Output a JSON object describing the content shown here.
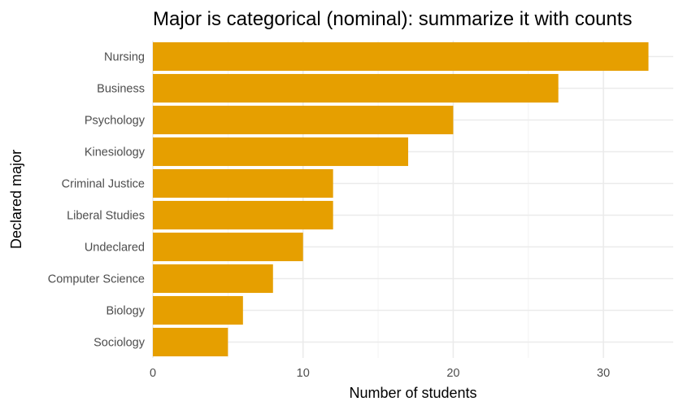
{
  "chart_data": {
    "type": "bar",
    "orientation": "horizontal",
    "title": "Major is categorical (nominal): summarize it with counts",
    "xlabel": "Number of students",
    "ylabel": "Declared major",
    "categories": [
      "Nursing",
      "Business",
      "Psychology",
      "Kinesiology",
      "Criminal Justice",
      "Liberal Studies",
      "Undeclared",
      "Computer Science",
      "Biology",
      "Sociology"
    ],
    "values": [
      33,
      27,
      20,
      17,
      12,
      12,
      10,
      8,
      6,
      5
    ],
    "xlim": [
      0,
      33
    ],
    "xticks": [
      0,
      10,
      20,
      30
    ],
    "grid": true,
    "colors": {
      "bar": "#E69F00",
      "grid": "#EBEBEB",
      "tick_text": "#4D4D4D"
    }
  }
}
